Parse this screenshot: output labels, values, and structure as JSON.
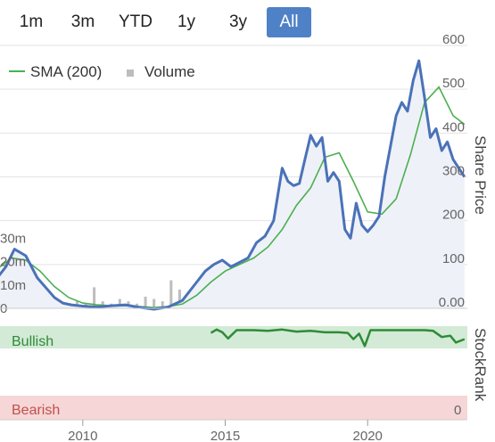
{
  "range_selector": {
    "buttons": [
      {
        "id": "1m",
        "label": "1m",
        "active": false
      },
      {
        "id": "3m",
        "label": "3m",
        "active": false
      },
      {
        "id": "ytd",
        "label": "YTD",
        "active": false
      },
      {
        "id": "1y",
        "label": "1y",
        "active": false
      },
      {
        "id": "3y",
        "label": "3y",
        "active": false
      },
      {
        "id": "all",
        "label": "All",
        "active": true
      }
    ]
  },
  "colors": {
    "price_line": "#4a72b8",
    "sma_line": "#4caf50",
    "volume_bar": "#bdbdbd",
    "area_fill": "#eef1f8",
    "bullish_bg": "#d3ead6",
    "bearish_bg": "#f6d6d6",
    "stockrank_line": "#2e8b37",
    "bullish_text": "#2e8b37",
    "bearish_text": "#c0504d",
    "active_button": "#4f81c7"
  },
  "chart_data": [
    {
      "type": "line",
      "legend": [
        "SMA (200)",
        "Volume"
      ],
      "legend_position": "top-left",
      "price_axis": {
        "title": "Share Price",
        "ticks": [
          "600",
          "500",
          "400",
          "300",
          "200",
          "100",
          "0.00"
        ],
        "range": [
          0,
          600
        ],
        "position": "right"
      },
      "volume_axis": {
        "ticks": [
          "30m",
          "20m",
          "10m",
          "0"
        ],
        "range": [
          0,
          40
        ],
        "position": "left"
      },
      "x_axis": {
        "ticks": [
          "2010",
          "2015",
          "2020"
        ],
        "range": [
          2007.0,
          2023.5
        ]
      },
      "series": [
        {
          "name": "",
          "kind": "price",
          "x": [
            2007.0,
            2007.3,
            2007.6,
            2008.0,
            2008.4,
            2008.8,
            2009.0,
            2009.3,
            2009.6,
            2010.0,
            2010.5,
            2011.0,
            2011.5,
            2012.0,
            2012.5,
            2013.0,
            2013.5,
            2014.0,
            2014.3,
            2014.6,
            2014.9,
            2015.2,
            2015.5,
            2015.8,
            2016.1,
            2016.4,
            2016.7,
            2017.0,
            2017.2,
            2017.4,
            2017.6,
            2017.8,
            2018.0,
            2018.2,
            2018.4,
            2018.6,
            2018.8,
            2019.0,
            2019.2,
            2019.4,
            2019.6,
            2019.8,
            2020.0,
            2020.2,
            2020.4,
            2020.6,
            2020.8,
            2021.0,
            2021.2,
            2021.4,
            2021.6,
            2021.8,
            2022.0,
            2022.2,
            2022.4,
            2022.6,
            2022.8,
            2023.0,
            2023.2,
            2023.4
          ],
          "values": [
            70,
            95,
            135,
            120,
            70,
            40,
            25,
            12,
            8,
            5,
            3,
            6,
            8,
            2,
            -2,
            3,
            18,
            60,
            85,
            100,
            110,
            95,
            105,
            115,
            150,
            165,
            200,
            320,
            290,
            280,
            285,
            340,
            395,
            370,
            390,
            290,
            310,
            290,
            180,
            160,
            240,
            190,
            175,
            190,
            210,
            300,
            370,
            440,
            470,
            450,
            520,
            565,
            480,
            390,
            410,
            360,
            380,
            340,
            320,
            300
          ]
        },
        {
          "name": "SMA (200)",
          "kind": "sma",
          "x": [
            2007.0,
            2007.5,
            2008.0,
            2008.5,
            2009.0,
            2009.5,
            2010.0,
            2010.5,
            2011.0,
            2011.5,
            2012.0,
            2012.5,
            2013.0,
            2013.5,
            2014.0,
            2014.5,
            2015.0,
            2015.5,
            2016.0,
            2016.5,
            2017.0,
            2017.5,
            2018.0,
            2018.5,
            2019.0,
            2019.5,
            2020.0,
            2020.5,
            2021.0,
            2021.5,
            2022.0,
            2022.5,
            2023.0,
            2023.4
          ],
          "values": [
            90,
            115,
            110,
            85,
            50,
            25,
            12,
            8,
            6,
            6,
            4,
            2,
            4,
            10,
            30,
            60,
            85,
            100,
            115,
            140,
            180,
            235,
            275,
            345,
            355,
            290,
            220,
            215,
            250,
            350,
            470,
            505,
            440,
            420
          ]
        },
        {
          "name": "Volume",
          "kind": "volume",
          "x": [
            2007.1,
            2007.4,
            2007.7,
            2008.0,
            2008.3,
            2008.6,
            2008.9,
            2009.2,
            2009.5,
            2009.8,
            2010.1,
            2010.4,
            2010.7,
            2011.0,
            2011.3,
            2011.6,
            2011.9,
            2012.2,
            2012.5,
            2012.8,
            2013.1,
            2013.4,
            2013.7,
            2014.0,
            2014.3,
            2014.6,
            2014.9,
            2015.2,
            2015.5,
            2015.8,
            2016.1,
            2016.4,
            2016.7,
            2017.0,
            2017.3,
            2017.6,
            2017.9,
            2018.2,
            2018.5,
            2018.8,
            2019.1,
            2019.4,
            2019.7,
            2020.0,
            2020.3,
            2020.6,
            2020.9,
            2021.2,
            2021.5,
            2021.8,
            2022.1,
            2022.4,
            2022.7,
            2023.0,
            2023.3
          ],
          "values": [
            12,
            18,
            3,
            4,
            6,
            5,
            3,
            2,
            2,
            3,
            2,
            9,
            3,
            2,
            4,
            3,
            2,
            5,
            4,
            3,
            12,
            8,
            3,
            4,
            2,
            4,
            3,
            5,
            12,
            18,
            7,
            4,
            5,
            9,
            6,
            5,
            4,
            3,
            4,
            5,
            6,
            5,
            3,
            7,
            5,
            4,
            3,
            6,
            7,
            5,
            4,
            5,
            3,
            2,
            3
          ]
        }
      ]
    },
    {
      "type": "line",
      "title": "",
      "y_axis": {
        "title": "StockRank",
        "ticks": [
          "0"
        ],
        "range": [
          0,
          100
        ],
        "position": "right"
      },
      "zones": [
        {
          "label": "Bullish",
          "range": [
            70,
            100
          ]
        },
        {
          "label": "Bearish",
          "range": [
            0,
            10
          ]
        }
      ],
      "x_axis": {
        "ticks": [
          "2010",
          "2015",
          "2020"
        ],
        "range": [
          2007.0,
          2023.5
        ]
      },
      "series": [
        {
          "name": "",
          "x": [
            2014.5,
            2014.7,
            2014.9,
            2015.1,
            2015.4,
            2015.7,
            2016.0,
            2016.5,
            2017.0,
            2017.5,
            2018.0,
            2018.5,
            2019.0,
            2019.3,
            2019.5,
            2019.7,
            2019.9,
            2020.1,
            2020.4,
            2020.8,
            2021.2,
            2021.6,
            2022.0,
            2022.3,
            2022.6,
            2022.9,
            2023.1,
            2023.4
          ],
          "values": [
            94,
            99,
            95,
            86,
            98,
            98,
            98,
            97,
            99,
            96,
            97,
            95,
            95,
            94,
            85,
            93,
            75,
            98,
            98,
            98,
            98,
            98,
            98,
            97,
            88,
            90,
            80,
            85
          ]
        }
      ]
    }
  ]
}
